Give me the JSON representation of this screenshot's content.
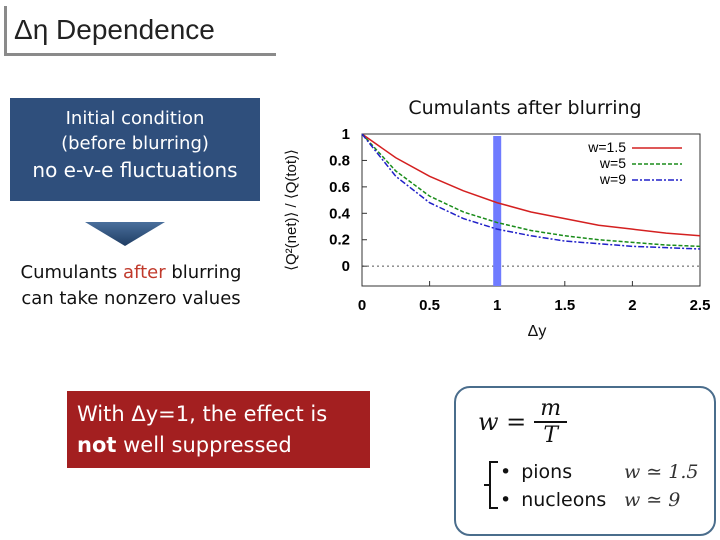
{
  "title": "Δη Dependence",
  "initial_box": {
    "line1": "Initial condition",
    "line2": "(before blurring)",
    "line3": "no e-v-e fluctuations"
  },
  "after_text": {
    "prefix": "Cumulants ",
    "highlight": "after",
    "suffix": " blurring",
    "line2": "can take nonzero values"
  },
  "warning": {
    "line1": "With Δy=1, the effect is",
    "bold": "not",
    "rest": " well suppressed"
  },
  "formula": {
    "lhs": "w =",
    "numerator": "m",
    "denominator": "T"
  },
  "particles": [
    {
      "name": "pions",
      "value": "w ≃ 1.5"
    },
    {
      "name": "nucleons",
      "value": "w ≃ 9"
    }
  ],
  "colors": {
    "title_border": "#8a8a8a",
    "initial_box": "#2f4f7c",
    "warning_box": "#a31f20",
    "highlight": "#c0392b",
    "formula_border": "#4a6d8c",
    "marker": "#6f7bff"
  },
  "chart_data": {
    "type": "line",
    "title": "Cumulants after blurring",
    "xlabel": "Δy",
    "ylabel": "⟨Q²(net)⟩ / ⟨Q(tot)⟩",
    "xlim": [
      0,
      2.5
    ],
    "ylim": [
      -0.15,
      1.0
    ],
    "xticks": [
      "0",
      "0.5",
      "1",
      "1.5",
      "2",
      "2.5"
    ],
    "yticks": [
      "0",
      "0.2",
      "0.4",
      "0.6",
      "0.8",
      "1"
    ],
    "x": [
      0,
      0.25,
      0.5,
      0.75,
      1.0,
      1.25,
      1.5,
      1.75,
      2.0,
      2.25,
      2.5
    ],
    "series": [
      {
        "name": "w=1.5",
        "color": "#d42020",
        "values": [
          1.0,
          0.82,
          0.68,
          0.57,
          0.48,
          0.41,
          0.36,
          0.31,
          0.28,
          0.25,
          0.23
        ]
      },
      {
        "name": "w=5",
        "color": "#1a8c1a",
        "values": [
          1.0,
          0.72,
          0.53,
          0.41,
          0.33,
          0.27,
          0.23,
          0.2,
          0.18,
          0.16,
          0.15
        ]
      },
      {
        "name": "w=9",
        "color": "#2020c8",
        "values": [
          1.0,
          0.68,
          0.48,
          0.36,
          0.28,
          0.23,
          0.19,
          0.17,
          0.15,
          0.14,
          0.13
        ]
      }
    ],
    "marker_x": 1.0
  }
}
